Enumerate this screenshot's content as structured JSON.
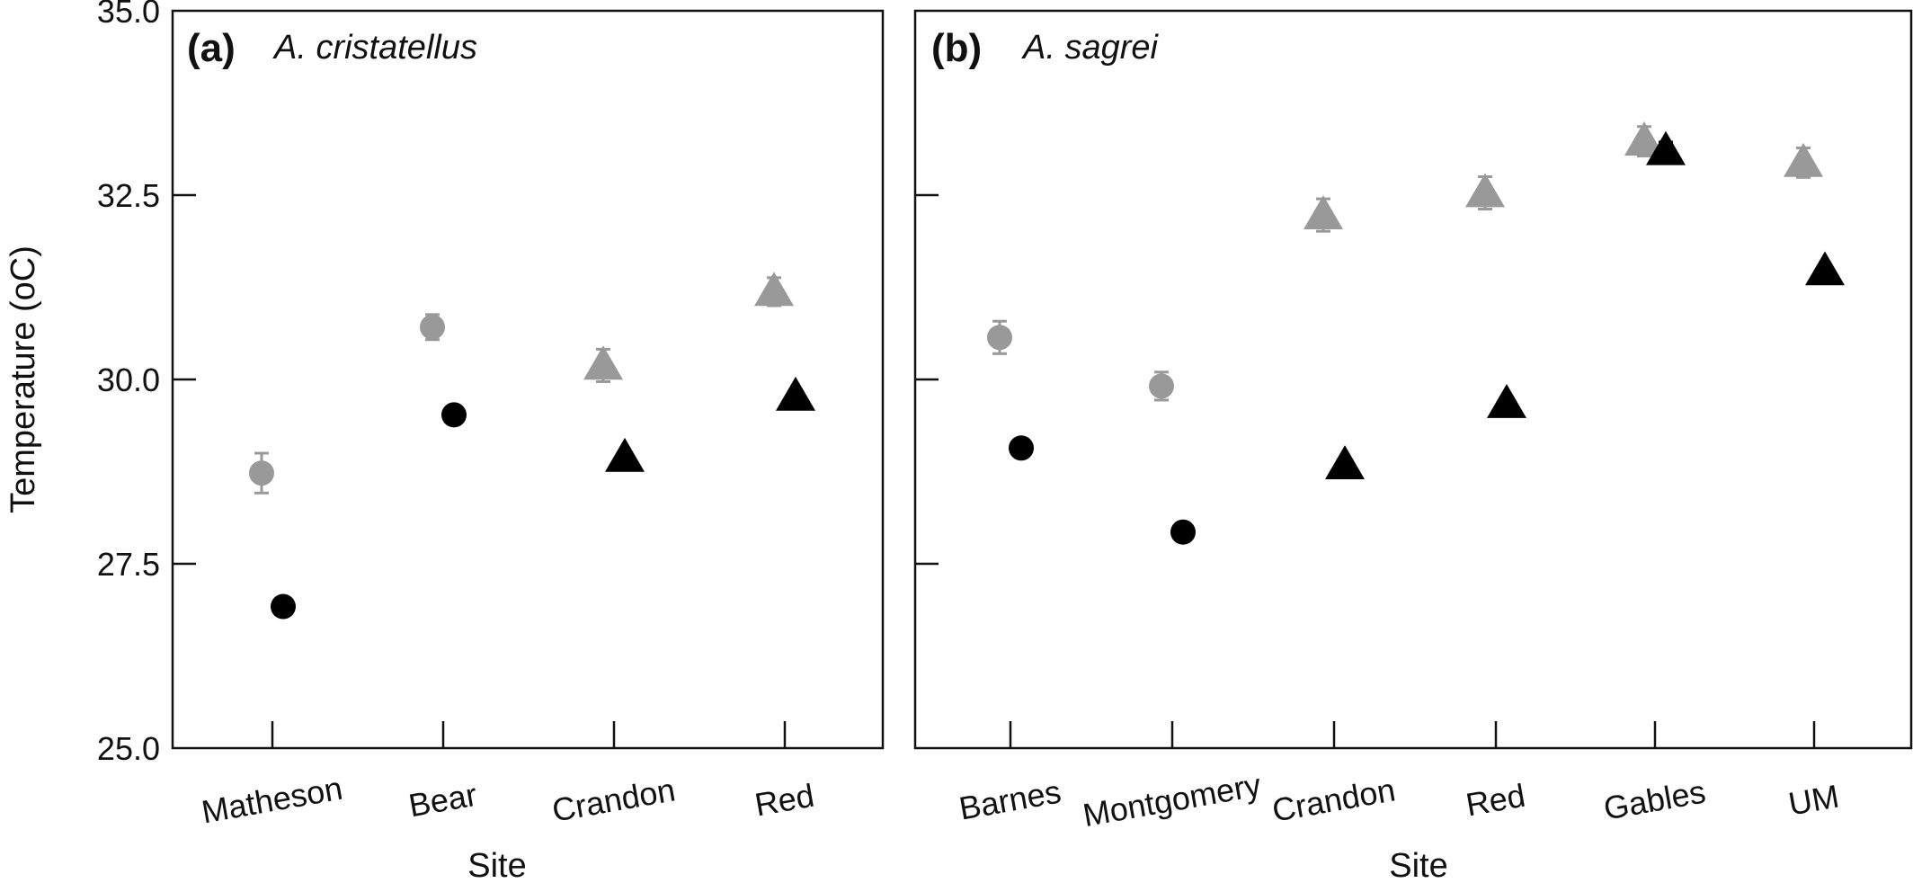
{
  "chart_data": [
    {
      "type": "scatter",
      "panel_label": "(a)",
      "species": "A. cristatellus",
      "xlabel": "Site",
      "ylabel": "Temperature (oC)",
      "ylim": [
        25.0,
        35.0
      ],
      "yticks": [
        "25.0",
        "27.5",
        "30.0",
        "32.5",
        "35.0"
      ],
      "categories": [
        "Matheson",
        "Bear",
        "Crandon",
        "Red"
      ],
      "grid": false,
      "points": [
        {
          "category": "Matheson",
          "y": 28.73,
          "err": 0.27,
          "shape": "circle",
          "color": "#999999"
        },
        {
          "category": "Matheson",
          "y": 26.92,
          "err": 0,
          "shape": "circle",
          "color": "#000000"
        },
        {
          "category": "Bear",
          "y": 30.71,
          "err": 0.17,
          "shape": "circle",
          "color": "#999999"
        },
        {
          "category": "Bear",
          "y": 29.52,
          "err": 0,
          "shape": "circle",
          "color": "#000000"
        },
        {
          "category": "Crandon",
          "y": 30.19,
          "err": 0.22,
          "shape": "triangle",
          "color": "#999999"
        },
        {
          "category": "Crandon",
          "y": 28.94,
          "err": 0,
          "shape": "triangle",
          "color": "#000000"
        },
        {
          "category": "Red",
          "y": 31.19,
          "err": 0.19,
          "shape": "triangle",
          "color": "#999999"
        },
        {
          "category": "Red",
          "y": 29.77,
          "err": 0,
          "shape": "triangle",
          "color": "#000000"
        }
      ]
    },
    {
      "type": "scatter",
      "panel_label": "(b)",
      "species": "A. sagrei",
      "xlabel": "Site",
      "ylim": [
        25.0,
        35.0
      ],
      "categories": [
        "Barnes",
        "Montgomery",
        "Crandon",
        "Red",
        "Gables",
        "UM"
      ],
      "grid": false,
      "points": [
        {
          "category": "Barnes",
          "y": 30.57,
          "err": 0.22,
          "shape": "circle",
          "color": "#999999"
        },
        {
          "category": "Barnes",
          "y": 29.07,
          "err": 0,
          "shape": "circle",
          "color": "#000000"
        },
        {
          "category": "Montgomery",
          "y": 29.91,
          "err": 0.19,
          "shape": "circle",
          "color": "#999999"
        },
        {
          "category": "Montgomery",
          "y": 27.93,
          "err": 0,
          "shape": "circle",
          "color": "#000000"
        },
        {
          "category": "Crandon",
          "y": 32.23,
          "err": 0.22,
          "shape": "triangle",
          "color": "#999999"
        },
        {
          "category": "Crandon",
          "y": 28.84,
          "err": 0,
          "shape": "triangle",
          "color": "#000000"
        },
        {
          "category": "Red",
          "y": 32.53,
          "err": 0.22,
          "shape": "triangle",
          "color": "#999999"
        },
        {
          "category": "Red",
          "y": 29.67,
          "err": 0,
          "shape": "triangle",
          "color": "#000000"
        },
        {
          "category": "Gables",
          "y": 33.23,
          "err": 0.2,
          "shape": "triangle",
          "color": "#999999"
        },
        {
          "category": "Gables",
          "y": 33.1,
          "err": 0.12,
          "shape": "triangle",
          "color": "#000000"
        },
        {
          "category": "UM",
          "y": 32.94,
          "err": 0.2,
          "shape": "triangle",
          "color": "#999999"
        },
        {
          "category": "UM",
          "y": 31.47,
          "err": 0,
          "shape": "triangle",
          "color": "#000000"
        }
      ]
    }
  ]
}
